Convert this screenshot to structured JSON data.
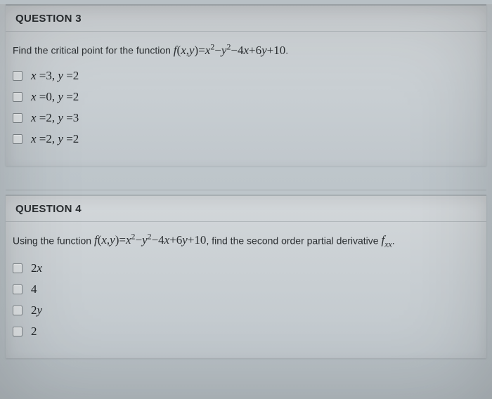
{
  "background_color": "#b8c0c5",
  "panel_gradient": [
    "#d3d7da",
    "#c0c7cc"
  ],
  "question3": {
    "title": "QUESTION 3",
    "prompt_prefix": "Find the critical point for the function ",
    "function_expr": "f(x,y)=x²−y²−4x+6y+10",
    "prompt_suffix": ".",
    "options": [
      {
        "text_html": "x =3, y =2"
      },
      {
        "text_html": "x =0, y =2"
      },
      {
        "text_html": "x =2, y =3"
      },
      {
        "text_html": "x =2, y =2"
      }
    ]
  },
  "question4": {
    "title": "QUESTION 4",
    "prompt_prefix": "Using the function ",
    "function_expr": "f(x,y)=x²−y²−4x+6y+10",
    "prompt_mid": ", find the second order partial derivative ",
    "deriv_symbol": "f",
    "deriv_sub": "xx",
    "prompt_suffix": ".",
    "options": [
      {
        "text_html": "2x"
      },
      {
        "text_html": "4"
      },
      {
        "text_html": "2y"
      },
      {
        "text_html": "2"
      }
    ]
  },
  "styles": {
    "title_fontsize": 15,
    "body_fontsize": 14,
    "math_fontsize": 17,
    "text_color": "#2c3033",
    "checkbox_border": "#7d8488",
    "checkbox_bg": "#dfe3e5"
  }
}
